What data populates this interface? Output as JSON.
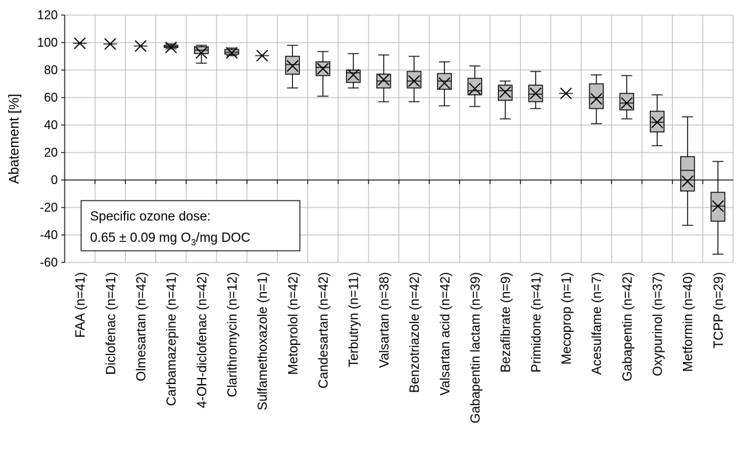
{
  "chart_data": {
    "type": "box",
    "ylabel": "Abatement [%]",
    "ylim": [
      -60,
      120
    ],
    "ytick_step": 20,
    "grid": true,
    "categories": [
      "FAA (n=41)",
      "Diclofenac (n=41)",
      "Olmesartan (n=42)",
      "Carbamazepine (n=41)",
      "4-OH-diclofenac (n=42)",
      "Clarithromycin (n=12)",
      "Sulfamethoxazole (n=1)",
      "Metoprolol (n=42)",
      "Candesartan (n=42)",
      "Terbutryn (n=11)",
      "Valsartan (n=38)",
      "Benzotriazole (n=42)",
      "Valsartan acid (n=42)",
      "Gabapentin lactam (n=39)",
      "Bezafibrate (n=9)",
      "Primidone (n=41)",
      "Mecoprop (n=1)",
      "Acesulfame (n=7)",
      "Gabapentin (n=42)",
      "Oxypurinol (n=37)",
      "Metformin (n=40)",
      "TCPP (n=29)"
    ],
    "boxes": [
      {
        "min": 99.5,
        "q1": 99.5,
        "median": 99.5,
        "q3": 99.5,
        "max": 99.5,
        "mean": 99.5
      },
      {
        "min": 99,
        "q1": 99,
        "median": 99,
        "q3": 99,
        "max": 99,
        "mean": 99
      },
      {
        "min": 97.5,
        "q1": 97.5,
        "median": 97.5,
        "q3": 97.5,
        "max": 97.5,
        "mean": 97.5
      },
      {
        "min": 95.5,
        "q1": 96.5,
        "median": 97,
        "q3": 98,
        "max": 99,
        "mean": 96.5
      },
      {
        "min": 85,
        "q1": 92,
        "median": 94.5,
        "q3": 97,
        "max": 98,
        "mean": 92.5
      },
      {
        "min": 90.5,
        "q1": 91.5,
        "median": 93,
        "q3": 95,
        "max": 96,
        "mean": 92.5
      },
      {
        "min": 90.5,
        "q1": 90.5,
        "median": 90.5,
        "q3": 90.5,
        "max": 90.5,
        "mean": 90.5
      },
      {
        "min": 67,
        "q1": 77,
        "median": 84,
        "q3": 90,
        "max": 98,
        "mean": 83
      },
      {
        "min": 61,
        "q1": 76,
        "median": 82,
        "q3": 86,
        "max": 93.5,
        "mean": 81
      },
      {
        "min": 67,
        "q1": 71,
        "median": 78,
        "q3": 80,
        "max": 92,
        "mean": 76.5
      },
      {
        "min": 57,
        "q1": 67,
        "median": 72,
        "q3": 77,
        "max": 91,
        "mean": 73
      },
      {
        "min": 57,
        "q1": 67,
        "median": 72,
        "q3": 79,
        "max": 90,
        "mean": 72
      },
      {
        "min": 54,
        "q1": 66,
        "median": 72,
        "q3": 77.5,
        "max": 86,
        "mean": 70.5
      },
      {
        "min": 53.5,
        "q1": 62,
        "median": 65,
        "q3": 74,
        "max": 83,
        "mean": 66.5
      },
      {
        "min": 44.5,
        "q1": 58,
        "median": 65,
        "q3": 69,
        "max": 72,
        "mean": 64
      },
      {
        "min": 52,
        "q1": 57,
        "median": 62.5,
        "q3": 69,
        "max": 79,
        "mean": 63
      },
      {
        "min": 63,
        "q1": 63,
        "median": 63,
        "q3": 63,
        "max": 63,
        "mean": 63
      },
      {
        "min": 41,
        "q1": 52,
        "median": 60,
        "q3": 70,
        "max": 76.5,
        "mean": 59
      },
      {
        "min": 44.5,
        "q1": 51,
        "median": 56,
        "q3": 63,
        "max": 76,
        "mean": 56
      },
      {
        "min": 25,
        "q1": 35,
        "median": 42,
        "q3": 50,
        "max": 62,
        "mean": 42
      },
      {
        "min": -33,
        "q1": -8,
        "median": 7,
        "q3": 17,
        "max": 46,
        "mean": -1
      },
      {
        "min": -54,
        "q1": -30,
        "median": -19,
        "q3": -9,
        "max": 13.5,
        "mean": -19
      }
    ],
    "annotation": {
      "line1": "Specific ozone dose:",
      "line2_prefix": "0.65 ± 0.09 mg O",
      "line2_sub": "3",
      "line2_suffix": "/mg DOC"
    }
  }
}
